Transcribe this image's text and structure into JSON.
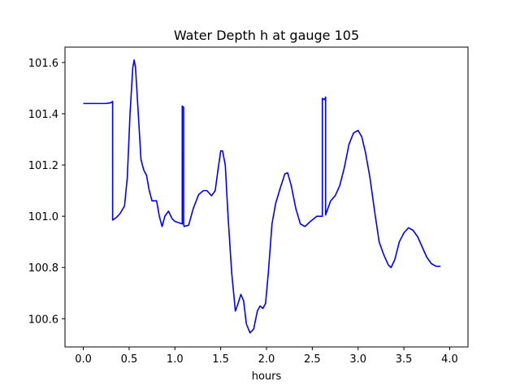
{
  "chart_data": {
    "type": "line",
    "title": "Water Depth h at gauge 105",
    "xlabel": "hours",
    "ylabel": "",
    "xlim": [
      -0.2,
      4.2
    ],
    "ylim": [
      100.49,
      101.66
    ],
    "x_ticks": [
      0.0,
      0.5,
      1.0,
      1.5,
      2.0,
      2.5,
      3.0,
      3.5,
      4.0
    ],
    "x_tick_labels": [
      "0.0",
      "0.5",
      "1.0",
      "1.5",
      "2.0",
      "2.5",
      "3.0",
      "3.5",
      "4.0"
    ],
    "y_ticks": [
      100.6,
      100.8,
      101.0,
      101.2,
      101.4,
      101.6
    ],
    "y_tick_labels": [
      "100.6",
      "100.8",
      "101.0",
      "101.2",
      "101.4",
      "101.6"
    ],
    "grid": false,
    "legend": "none",
    "series": [
      {
        "color": "#0000ff",
        "points": [
          [
            0.0,
            101.44
          ],
          [
            0.1,
            101.44
          ],
          [
            0.2,
            101.44
          ],
          [
            0.25,
            101.44
          ],
          [
            0.3,
            101.443
          ],
          [
            0.32,
            101.448
          ],
          [
            0.32,
            100.985
          ],
          [
            0.36,
            100.995
          ],
          [
            0.4,
            101.01
          ],
          [
            0.45,
            101.04
          ],
          [
            0.48,
            101.15
          ],
          [
            0.51,
            101.4
          ],
          [
            0.54,
            101.58
          ],
          [
            0.555,
            101.61
          ],
          [
            0.57,
            101.58
          ],
          [
            0.6,
            101.4
          ],
          [
            0.63,
            101.22
          ],
          [
            0.66,
            101.18
          ],
          [
            0.69,
            101.16
          ],
          [
            0.72,
            101.1
          ],
          [
            0.75,
            101.06
          ],
          [
            0.8,
            101.06
          ],
          [
            0.83,
            101.0
          ],
          [
            0.86,
            100.96
          ],
          [
            0.89,
            101.0
          ],
          [
            0.93,
            101.02
          ],
          [
            0.97,
            100.99
          ],
          [
            1.0,
            100.98
          ],
          [
            1.04,
            100.975
          ],
          [
            1.08,
            100.97
          ],
          [
            1.08,
            101.43
          ],
          [
            1.095,
            101.425
          ],
          [
            1.095,
            100.97
          ],
          [
            1.1,
            100.96
          ],
          [
            1.15,
            100.965
          ],
          [
            1.2,
            101.03
          ],
          [
            1.26,
            101.085
          ],
          [
            1.31,
            101.1
          ],
          [
            1.35,
            101.1
          ],
          [
            1.4,
            101.08
          ],
          [
            1.44,
            101.1
          ],
          [
            1.47,
            101.18
          ],
          [
            1.5,
            101.255
          ],
          [
            1.52,
            101.255
          ],
          [
            1.55,
            101.2
          ],
          [
            1.58,
            101.0
          ],
          [
            1.62,
            100.78
          ],
          [
            1.66,
            100.63
          ],
          [
            1.69,
            100.66
          ],
          [
            1.72,
            100.695
          ],
          [
            1.75,
            100.67
          ],
          [
            1.78,
            100.58
          ],
          [
            1.82,
            100.545
          ],
          [
            1.86,
            100.56
          ],
          [
            1.9,
            100.63
          ],
          [
            1.93,
            100.65
          ],
          [
            1.96,
            100.64
          ],
          [
            1.99,
            100.66
          ],
          [
            2.02,
            100.78
          ],
          [
            2.06,
            100.97
          ],
          [
            2.1,
            101.05
          ],
          [
            2.15,
            101.11
          ],
          [
            2.2,
            101.165
          ],
          [
            2.23,
            101.17
          ],
          [
            2.27,
            101.12
          ],
          [
            2.32,
            101.03
          ],
          [
            2.37,
            100.97
          ],
          [
            2.42,
            100.96
          ],
          [
            2.48,
            100.98
          ],
          [
            2.55,
            101.0
          ],
          [
            2.6,
            101.0
          ],
          [
            2.61,
            101.0
          ],
          [
            2.61,
            101.46
          ],
          [
            2.635,
            101.455
          ],
          [
            2.645,
            101.465
          ],
          [
            2.645,
            101.005
          ],
          [
            2.67,
            101.03
          ],
          [
            2.7,
            101.06
          ],
          [
            2.75,
            101.08
          ],
          [
            2.8,
            101.12
          ],
          [
            2.85,
            101.19
          ],
          [
            2.9,
            101.28
          ],
          [
            2.95,
            101.325
          ],
          [
            3.0,
            101.335
          ],
          [
            3.04,
            101.31
          ],
          [
            3.08,
            101.25
          ],
          [
            3.13,
            101.15
          ],
          [
            3.18,
            101.02
          ],
          [
            3.23,
            100.9
          ],
          [
            3.28,
            100.85
          ],
          [
            3.33,
            100.81
          ],
          [
            3.36,
            100.8
          ],
          [
            3.4,
            100.83
          ],
          [
            3.45,
            100.9
          ],
          [
            3.5,
            100.935
          ],
          [
            3.55,
            100.955
          ],
          [
            3.6,
            100.945
          ],
          [
            3.65,
            100.92
          ],
          [
            3.7,
            100.88
          ],
          [
            3.75,
            100.84
          ],
          [
            3.8,
            100.815
          ],
          [
            3.85,
            100.805
          ],
          [
            3.9,
            100.805
          ]
        ]
      }
    ]
  }
}
